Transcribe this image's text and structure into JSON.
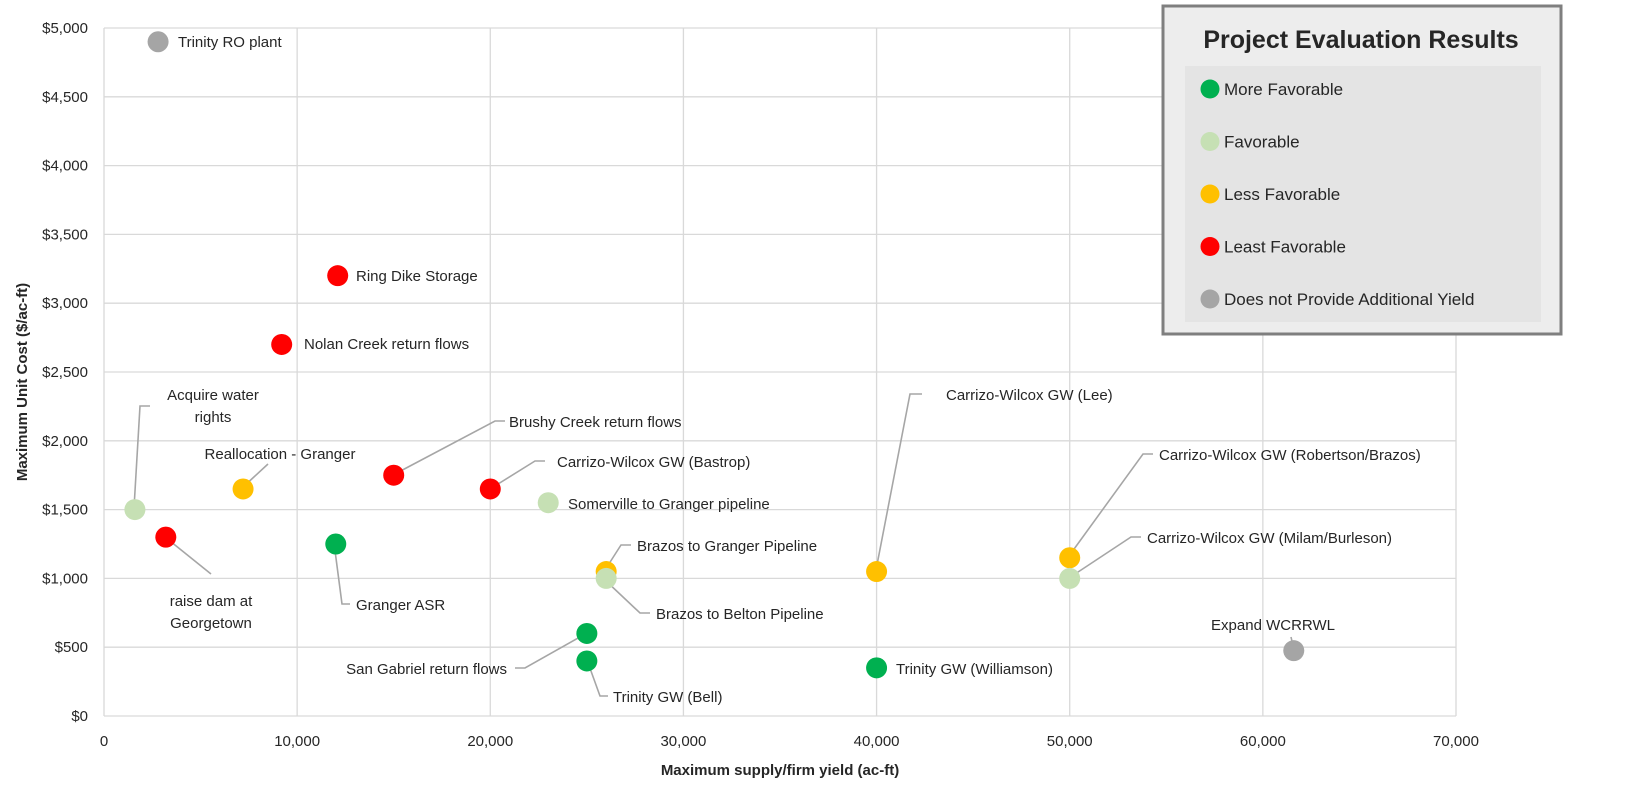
{
  "chart_data": {
    "type": "scatter",
    "xlabel": "Maximum supply/firm yield (ac-ft)",
    "ylabel": "Maximum Unit Cost ($/ac-ft)",
    "xlim": [
      0,
      70000
    ],
    "ylim": [
      0,
      5000
    ],
    "x_ticks": [
      "0",
      "10,000",
      "20,000",
      "30,000",
      "40,000",
      "50,000",
      "60,000",
      "70,000"
    ],
    "y_ticks": [
      "$0",
      "$500",
      "$1,000",
      "$1,500",
      "$2,000",
      "$2,500",
      "$3,000",
      "$3,500",
      "$4,000",
      "$4,500",
      "$5,000"
    ],
    "grid": true,
    "legend": {
      "title": "Project Evaluation Results",
      "placement": "top-right",
      "entries": [
        {
          "label": "More Favorable",
          "color": "#00B050"
        },
        {
          "label": "Favorable",
          "color": "#C6E0B4"
        },
        {
          "label": "Less Favorable",
          "color": "#FFC000"
        },
        {
          "label": "Least Favorable",
          "color": "#FF0000"
        },
        {
          "label": "Does not Provide Additional Yield",
          "color": "#A5A5A5"
        }
      ]
    },
    "points": [
      {
        "label": "Trinity RO plant",
        "x": 2800,
        "y": 4900,
        "category": "Does not Provide Additional Yield"
      },
      {
        "label": "Ring Dike Storage",
        "x": 12100,
        "y": 3200,
        "category": "Least Favorable"
      },
      {
        "label": "Nolan Creek return flows",
        "x": 9200,
        "y": 2700,
        "category": "Least Favorable"
      },
      {
        "label": "Acquire water rights",
        "x": 1600,
        "y": 1500,
        "category": "Favorable"
      },
      {
        "label": "Reallocation - Granger",
        "x": 7200,
        "y": 1650,
        "category": "Less Favorable"
      },
      {
        "label": "Brushy Creek return flows",
        "x": 15000,
        "y": 1750,
        "category": "Least Favorable"
      },
      {
        "label": "Carrizo-Wilcox GW (Bastrop)",
        "x": 20000,
        "y": 1650,
        "category": "Least Favorable"
      },
      {
        "label": "Somerville to Granger pipeline",
        "x": 23000,
        "y": 1550,
        "category": "Favorable"
      },
      {
        "label": "raise dam at Georgetown",
        "x": 3200,
        "y": 1300,
        "category": "Least Favorable"
      },
      {
        "label": "Granger ASR",
        "x": 12000,
        "y": 1250,
        "category": "More Favorable"
      },
      {
        "label": "Brazos to Granger Pipeline",
        "x": 26000,
        "y": 1050,
        "category": "Less Favorable"
      },
      {
        "label": "Brazos to Belton Pipeline",
        "x": 26000,
        "y": 1000,
        "category": "Favorable"
      },
      {
        "label": "Carrizo-Wilcox GW (Lee)",
        "x": 40000,
        "y": 1050,
        "category": "Less Favorable"
      },
      {
        "label": "Carrizo-Wilcox GW (Robertson/Brazos)",
        "x": 50000,
        "y": 1150,
        "category": "Less Favorable"
      },
      {
        "label": "Carrizo-Wilcox GW (Milam/Burleson)",
        "x": 50000,
        "y": 1000,
        "category": "Favorable"
      },
      {
        "label": "San Gabriel return flows",
        "x": 25000,
        "y": 600,
        "category": "More Favorable"
      },
      {
        "label": "Trinity GW (Bell)",
        "x": 25000,
        "y": 400,
        "category": "More Favorable"
      },
      {
        "label": "Trinity GW (Williamson)",
        "x": 40000,
        "y": 350,
        "category": "More Favorable"
      },
      {
        "label": "Expand WCRRWL",
        "x": 61600,
        "y": 475,
        "category": "Does not Provide Additional Yield"
      }
    ]
  }
}
